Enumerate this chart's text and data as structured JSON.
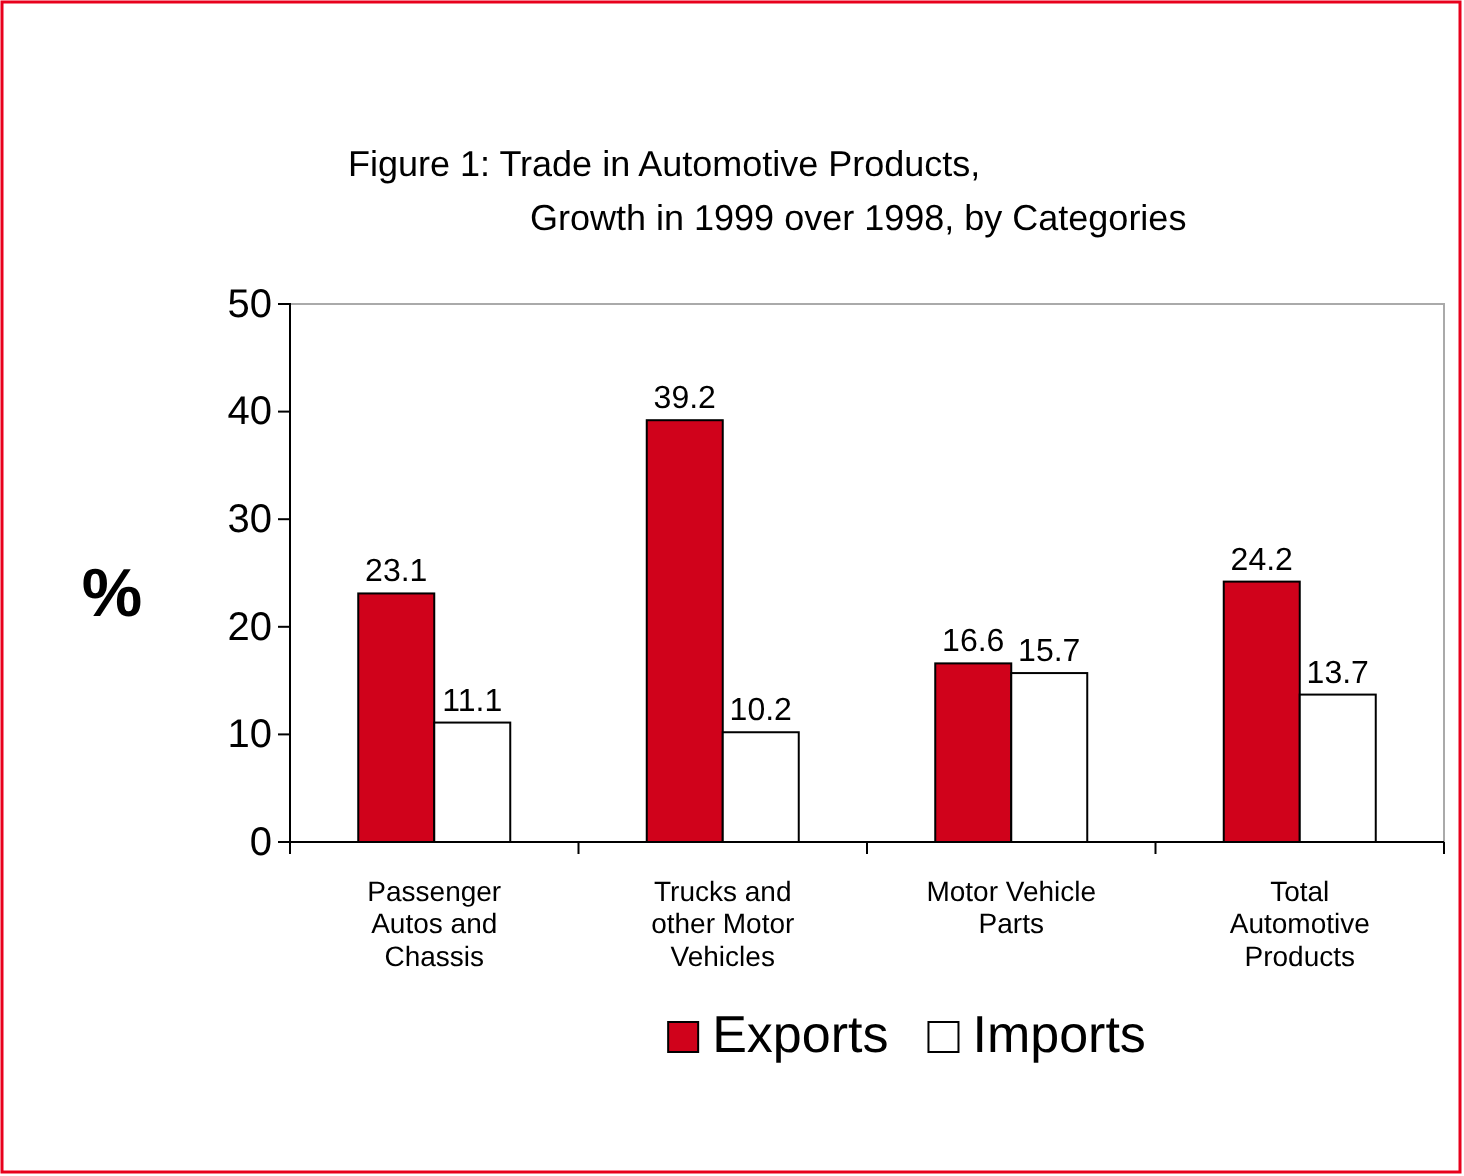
{
  "chart_data": {
    "type": "bar",
    "title": "Figure 1: Trade in Automotive Products,\nGrowth in 1999 over 1998, by Categories",
    "ylabel": "%",
    "categories": [
      "Passenger Autos and Chassis",
      "Trucks and other Motor Vehicles",
      "Motor Vehicle Parts",
      "Total Automotive Products"
    ],
    "series": [
      {
        "name": "Exports",
        "color": "#d0021b",
        "values": [
          23.1,
          39.2,
          16.6,
          24.2
        ]
      },
      {
        "name": "Imports",
        "color": "#ffffff",
        "values": [
          11.1,
          10.2,
          15.7,
          13.7
        ]
      }
    ],
    "ylim": [
      0,
      50
    ],
    "yticks": [
      0,
      10,
      20,
      30,
      40,
      50
    ],
    "data_labels": true,
    "grid": false,
    "legend": "bottom"
  }
}
